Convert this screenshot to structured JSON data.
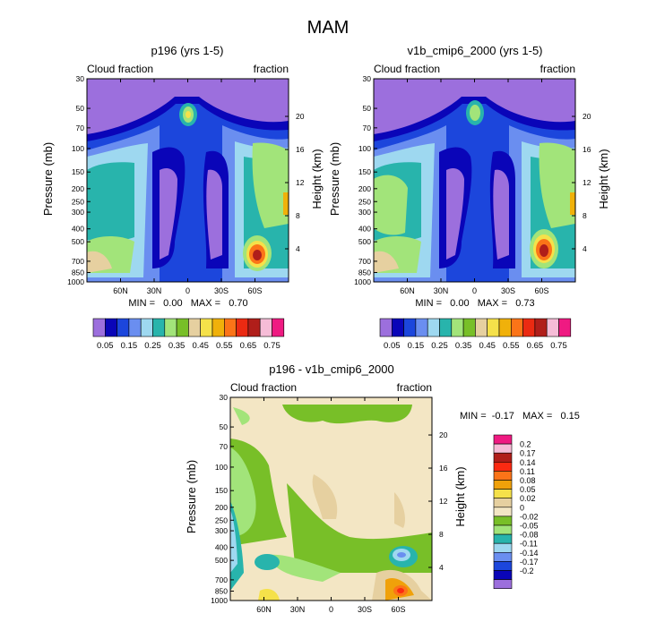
{
  "main_title": "MAM",
  "chart_data": [
    {
      "type": "heatmap",
      "title": "p196 (yrs 1-5)",
      "left_label": "Cloud fraction",
      "right_label": "fraction",
      "ylabel": "Pressure (mb)",
      "ylabel_right": "Height (km)",
      "x_ticks": [
        "60N",
        "30N",
        "0",
        "30S",
        "60S"
      ],
      "x_tick_values": [
        60,
        30,
        0,
        -30,
        -60
      ],
      "xlim": [
        90,
        -90
      ],
      "pressure_ticks": [
        "30",
        "50",
        "70",
        "100",
        "150",
        "200",
        "250",
        "300",
        "400",
        "500",
        "700",
        "850",
        "1000"
      ],
      "pressure_values": [
        30,
        50,
        70,
        100,
        150,
        200,
        250,
        300,
        400,
        500,
        700,
        850,
        1000
      ],
      "height_ticks": [
        "20",
        "16",
        "12",
        "8",
        "4"
      ],
      "height_values": [
        20,
        16,
        12,
        8,
        4
      ],
      "min_max_text": "MIN =   0.00   MAX =   0.70",
      "min": 0.0,
      "max": 0.7
    },
    {
      "type": "heatmap",
      "title": "v1b_cmip6_2000 (yrs 1-5)",
      "left_label": "Cloud fraction",
      "right_label": "fraction",
      "ylabel": "Pressure (mb)",
      "ylabel_right": "Height (km)",
      "x_ticks": [
        "60N",
        "30N",
        "0",
        "30S",
        "60S"
      ],
      "x_tick_values": [
        60,
        30,
        0,
        -30,
        -60
      ],
      "xlim": [
        90,
        -90
      ],
      "pressure_ticks": [
        "30",
        "50",
        "70",
        "100",
        "150",
        "200",
        "250",
        "300",
        "400",
        "500",
        "700",
        "850",
        "1000"
      ],
      "pressure_values": [
        30,
        50,
        70,
        100,
        150,
        200,
        250,
        300,
        400,
        500,
        700,
        850,
        1000
      ],
      "height_ticks": [
        "20",
        "16",
        "12",
        "8",
        "4"
      ],
      "height_values": [
        20,
        16,
        12,
        8,
        4
      ],
      "min_max_text": "MIN =   0.00   MAX =   0.73",
      "min": 0.0,
      "max": 0.73
    },
    {
      "type": "heatmap",
      "title": "p196 - v1b_cmip6_2000",
      "left_label": "Cloud fraction",
      "right_label": "fraction",
      "ylabel": "Pressure (mb)",
      "ylabel_right": "Height (km)",
      "x_ticks": [
        "60N",
        "30N",
        "0",
        "30S",
        "60S"
      ],
      "x_tick_values": [
        60,
        30,
        0,
        -30,
        -60
      ],
      "xlim": [
        90,
        -90
      ],
      "pressure_ticks": [
        "30",
        "50",
        "70",
        "100",
        "150",
        "200",
        "250",
        "300",
        "400",
        "500",
        "700",
        "850",
        "1000"
      ],
      "pressure_values": [
        30,
        50,
        70,
        100,
        150,
        200,
        250,
        300,
        400,
        500,
        700,
        850,
        1000
      ],
      "height_ticks": [
        "20",
        "16",
        "12",
        "8",
        "4"
      ],
      "height_values": [
        20,
        16,
        12,
        8,
        4
      ],
      "min_max_text": "MIN =  -0.17   MAX =   0.15",
      "min": -0.17,
      "max": 0.15
    }
  ],
  "colorbar_abs": {
    "labels": [
      "0.05",
      "0.15",
      "0.25",
      "0.35",
      "0.45",
      "0.55",
      "0.65",
      "0.75"
    ],
    "colors": [
      "#9c6fdd",
      "#0a05b8",
      "#1c46dc",
      "#6a8ef0",
      "#9ed8f0",
      "#28b4ac",
      "#a2e47a",
      "#78bf28",
      "#e6d0a0",
      "#f5e14a",
      "#f0b10a",
      "#fb7418",
      "#eb2a12",
      "#b01e1a",
      "#f6bcd7",
      "#ef1a82"
    ]
  },
  "colorbar_diff": {
    "labels": [
      "0.2",
      "0.17",
      "0.14",
      "0.11",
      "0.08",
      "0.05",
      "0.02",
      "0",
      "-0.02",
      "-0.05",
      "-0.08",
      "-0.11",
      "-0.14",
      "-0.17",
      "-0.2"
    ],
    "colors": [
      "#ef1a82",
      "#f6bcd7",
      "#b01e1a",
      "#fb2a12",
      "#fb7418",
      "#f0a10a",
      "#f5e14a",
      "#e6d0a0",
      "#f3e6c4",
      "#78bf28",
      "#a2e47a",
      "#28b4ac",
      "#9ed8f0",
      "#6a8ef0",
      "#1c46dc",
      "#0a05b8",
      "#9c6fdd"
    ]
  }
}
